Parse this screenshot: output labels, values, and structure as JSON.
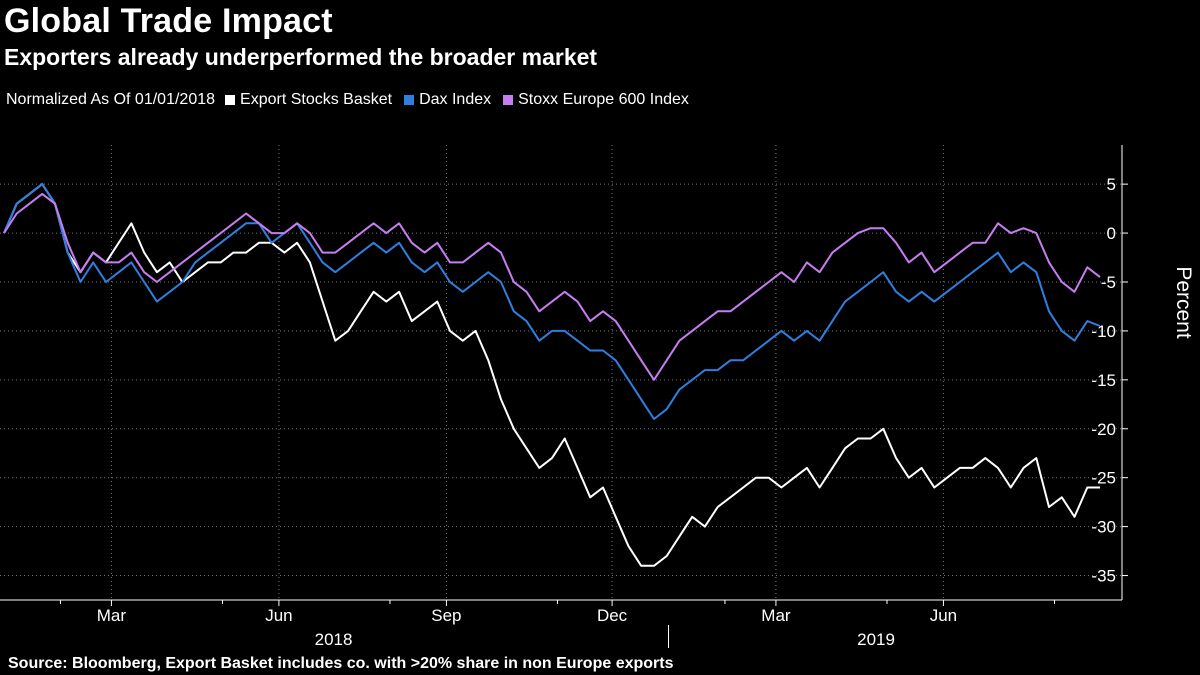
{
  "header": {
    "title": "Global Trade Impact",
    "subtitle": "Exporters already underperformed the broader market"
  },
  "legend": {
    "note": "Normalized As Of 01/01/2018",
    "items": [
      {
        "label": "Export Stocks Basket",
        "color": "#ffffff"
      },
      {
        "label": "Dax Index",
        "color": "#2e7fe0"
      },
      {
        "label": "Stoxx Europe 600 Index",
        "color": "#c77df2"
      }
    ]
  },
  "footer": {
    "source": "Source: Bloomberg, Export Basket includes co. with >20% share in non Europe exports"
  },
  "chart_data": {
    "type": "line",
    "ylabel": "Percent",
    "ylim": [
      -37.5,
      9
    ],
    "yticks": [
      5,
      0,
      -5,
      -10,
      -15,
      -20,
      -25,
      -30,
      -35
    ],
    "ytick_labels": [
      "5",
      "0",
      "-5",
      "-10",
      "-15",
      "-20",
      "-25",
      "-30",
      "-35"
    ],
    "y_axis_position": "right",
    "grid": "dotted",
    "xlim": [
      "2018-01-01",
      "2019-08-26"
    ],
    "x_ticks": [
      {
        "date": "2018-03-01",
        "label": "Mar"
      },
      {
        "date": "2018-06-01",
        "label": "Jun"
      },
      {
        "date": "2018-09-01",
        "label": "Sep"
      },
      {
        "date": "2018-12-01",
        "label": "Dec"
      },
      {
        "date": "2019-03-01",
        "label": "Mar"
      },
      {
        "date": "2019-06-01",
        "label": "Jun"
      }
    ],
    "minor_x_ticks": [
      "2018-02-01",
      "2018-05-01",
      "2018-08-01",
      "2018-11-01",
      "2019-02-01",
      "2019-05-01",
      "2019-08-01"
    ],
    "year_labels": [
      {
        "label": "2018",
        "date": "2018-07-01"
      },
      {
        "label": "2019",
        "date": "2019-04-25"
      }
    ],
    "year_boundary": "2019-01-01",
    "series": [
      {
        "name": "Export Stocks Basket",
        "color": "#ffffff",
        "points": [
          [
            "2018-01-01",
            0
          ],
          [
            "2018-01-08",
            3
          ],
          [
            "2018-01-15",
            4
          ],
          [
            "2018-01-22",
            5
          ],
          [
            "2018-01-29",
            3
          ],
          [
            "2018-02-05",
            -2
          ],
          [
            "2018-02-12",
            -4
          ],
          [
            "2018-02-19",
            -2
          ],
          [
            "2018-02-26",
            -3
          ],
          [
            "2018-03-05",
            -1
          ],
          [
            "2018-03-12",
            1
          ],
          [
            "2018-03-19",
            -2
          ],
          [
            "2018-03-26",
            -4
          ],
          [
            "2018-04-02",
            -3
          ],
          [
            "2018-04-09",
            -5
          ],
          [
            "2018-04-16",
            -4
          ],
          [
            "2018-04-23",
            -3
          ],
          [
            "2018-04-30",
            -3
          ],
          [
            "2018-05-07",
            -2
          ],
          [
            "2018-05-14",
            -2
          ],
          [
            "2018-05-21",
            -1
          ],
          [
            "2018-05-28",
            -1
          ],
          [
            "2018-06-04",
            -2
          ],
          [
            "2018-06-11",
            -1
          ],
          [
            "2018-06-18",
            -3
          ],
          [
            "2018-06-25",
            -7
          ],
          [
            "2018-07-02",
            -11
          ],
          [
            "2018-07-09",
            -10
          ],
          [
            "2018-07-16",
            -8
          ],
          [
            "2018-07-23",
            -6
          ],
          [
            "2018-07-30",
            -7
          ],
          [
            "2018-08-06",
            -6
          ],
          [
            "2018-08-13",
            -9
          ],
          [
            "2018-08-20",
            -8
          ],
          [
            "2018-08-27",
            -7
          ],
          [
            "2018-09-03",
            -10
          ],
          [
            "2018-09-10",
            -11
          ],
          [
            "2018-09-17",
            -10
          ],
          [
            "2018-09-24",
            -13
          ],
          [
            "2018-10-01",
            -17
          ],
          [
            "2018-10-08",
            -20
          ],
          [
            "2018-10-15",
            -22
          ],
          [
            "2018-10-22",
            -24
          ],
          [
            "2018-10-29",
            -23
          ],
          [
            "2018-11-05",
            -21
          ],
          [
            "2018-11-12",
            -24
          ],
          [
            "2018-11-19",
            -27
          ],
          [
            "2018-11-26",
            -26
          ],
          [
            "2018-12-03",
            -29
          ],
          [
            "2018-12-10",
            -32
          ],
          [
            "2018-12-17",
            -34
          ],
          [
            "2018-12-24",
            -34
          ],
          [
            "2018-12-31",
            -33
          ],
          [
            "2019-01-07",
            -31
          ],
          [
            "2019-01-14",
            -29
          ],
          [
            "2019-01-21",
            -30
          ],
          [
            "2019-01-28",
            -28
          ],
          [
            "2019-02-04",
            -27
          ],
          [
            "2019-02-11",
            -26
          ],
          [
            "2019-02-18",
            -25
          ],
          [
            "2019-02-25",
            -25
          ],
          [
            "2019-03-04",
            -26
          ],
          [
            "2019-03-11",
            -25
          ],
          [
            "2019-03-18",
            -24
          ],
          [
            "2019-03-25",
            -26
          ],
          [
            "2019-04-01",
            -24
          ],
          [
            "2019-04-08",
            -22
          ],
          [
            "2019-04-15",
            -21
          ],
          [
            "2019-04-22",
            -21
          ],
          [
            "2019-04-29",
            -20
          ],
          [
            "2019-05-06",
            -23
          ],
          [
            "2019-05-13",
            -25
          ],
          [
            "2019-05-20",
            -24
          ],
          [
            "2019-05-27",
            -26
          ],
          [
            "2019-06-03",
            -25
          ],
          [
            "2019-06-10",
            -24
          ],
          [
            "2019-06-17",
            -24
          ],
          [
            "2019-06-24",
            -23
          ],
          [
            "2019-07-01",
            -24
          ],
          [
            "2019-07-08",
            -26
          ],
          [
            "2019-07-15",
            -24
          ],
          [
            "2019-07-22",
            -23
          ],
          [
            "2019-07-29",
            -28
          ],
          [
            "2019-08-05",
            -27
          ],
          [
            "2019-08-12",
            -29
          ],
          [
            "2019-08-19",
            -26
          ],
          [
            "2019-08-26",
            -26
          ]
        ]
      },
      {
        "name": "Dax Index",
        "color": "#2e7fe0",
        "points": [
          [
            "2018-01-01",
            0
          ],
          [
            "2018-01-08",
            3
          ],
          [
            "2018-01-15",
            4
          ],
          [
            "2018-01-22",
            5
          ],
          [
            "2018-01-29",
            3
          ],
          [
            "2018-02-05",
            -2
          ],
          [
            "2018-02-12",
            -5
          ],
          [
            "2018-02-19",
            -3
          ],
          [
            "2018-02-26",
            -5
          ],
          [
            "2018-03-05",
            -4
          ],
          [
            "2018-03-12",
            -3
          ],
          [
            "2018-03-19",
            -5
          ],
          [
            "2018-03-26",
            -7
          ],
          [
            "2018-04-02",
            -6
          ],
          [
            "2018-04-09",
            -5
          ],
          [
            "2018-04-16",
            -3
          ],
          [
            "2018-04-23",
            -2
          ],
          [
            "2018-04-30",
            -1
          ],
          [
            "2018-05-07",
            0
          ],
          [
            "2018-05-14",
            1
          ],
          [
            "2018-05-21",
            1
          ],
          [
            "2018-05-28",
            -1
          ],
          [
            "2018-06-04",
            0
          ],
          [
            "2018-06-11",
            1
          ],
          [
            "2018-06-18",
            -1
          ],
          [
            "2018-06-25",
            -3
          ],
          [
            "2018-07-02",
            -4
          ],
          [
            "2018-07-09",
            -3
          ],
          [
            "2018-07-16",
            -2
          ],
          [
            "2018-07-23",
            -1
          ],
          [
            "2018-07-30",
            -2
          ],
          [
            "2018-08-06",
            -1
          ],
          [
            "2018-08-13",
            -3
          ],
          [
            "2018-08-20",
            -4
          ],
          [
            "2018-08-27",
            -3
          ],
          [
            "2018-09-03",
            -5
          ],
          [
            "2018-09-10",
            -6
          ],
          [
            "2018-09-17",
            -5
          ],
          [
            "2018-09-24",
            -4
          ],
          [
            "2018-10-01",
            -5
          ],
          [
            "2018-10-08",
            -8
          ],
          [
            "2018-10-15",
            -9
          ],
          [
            "2018-10-22",
            -11
          ],
          [
            "2018-10-29",
            -10
          ],
          [
            "2018-11-05",
            -10
          ],
          [
            "2018-11-12",
            -11
          ],
          [
            "2018-11-19",
            -12
          ],
          [
            "2018-11-26",
            -12
          ],
          [
            "2018-12-03",
            -13
          ],
          [
            "2018-12-10",
            -15
          ],
          [
            "2018-12-17",
            -17
          ],
          [
            "2018-12-24",
            -19
          ],
          [
            "2018-12-31",
            -18
          ],
          [
            "2019-01-07",
            -16
          ],
          [
            "2019-01-14",
            -15
          ],
          [
            "2019-01-21",
            -14
          ],
          [
            "2019-01-28",
            -14
          ],
          [
            "2019-02-04",
            -13
          ],
          [
            "2019-02-11",
            -13
          ],
          [
            "2019-02-18",
            -12
          ],
          [
            "2019-02-25",
            -11
          ],
          [
            "2019-03-04",
            -10
          ],
          [
            "2019-03-11",
            -11
          ],
          [
            "2019-03-18",
            -10
          ],
          [
            "2019-03-25",
            -11
          ],
          [
            "2019-04-01",
            -9
          ],
          [
            "2019-04-08",
            -7
          ],
          [
            "2019-04-15",
            -6
          ],
          [
            "2019-04-22",
            -5
          ],
          [
            "2019-04-29",
            -4
          ],
          [
            "2019-05-06",
            -6
          ],
          [
            "2019-05-13",
            -7
          ],
          [
            "2019-05-20",
            -6
          ],
          [
            "2019-05-27",
            -7
          ],
          [
            "2019-06-03",
            -6
          ],
          [
            "2019-06-10",
            -5
          ],
          [
            "2019-06-17",
            -4
          ],
          [
            "2019-06-24",
            -3
          ],
          [
            "2019-07-01",
            -2
          ],
          [
            "2019-07-08",
            -4
          ],
          [
            "2019-07-15",
            -3
          ],
          [
            "2019-07-22",
            -4
          ],
          [
            "2019-07-29",
            -8
          ],
          [
            "2019-08-05",
            -10
          ],
          [
            "2019-08-12",
            -11
          ],
          [
            "2019-08-19",
            -9
          ],
          [
            "2019-08-26",
            -9.5
          ]
        ]
      },
      {
        "name": "Stoxx Europe 600 Index",
        "color": "#c77df2",
        "points": [
          [
            "2018-01-01",
            0
          ],
          [
            "2018-01-08",
            2
          ],
          [
            "2018-01-15",
            3
          ],
          [
            "2018-01-22",
            4
          ],
          [
            "2018-01-29",
            3
          ],
          [
            "2018-02-05",
            -1
          ],
          [
            "2018-02-12",
            -4
          ],
          [
            "2018-02-19",
            -2
          ],
          [
            "2018-02-26",
            -3
          ],
          [
            "2018-03-05",
            -3
          ],
          [
            "2018-03-12",
            -2
          ],
          [
            "2018-03-19",
            -4
          ],
          [
            "2018-03-26",
            -5
          ],
          [
            "2018-04-02",
            -4
          ],
          [
            "2018-04-09",
            -3
          ],
          [
            "2018-04-16",
            -2
          ],
          [
            "2018-04-23",
            -1
          ],
          [
            "2018-04-30",
            0
          ],
          [
            "2018-05-07",
            1
          ],
          [
            "2018-05-14",
            2
          ],
          [
            "2018-05-21",
            1
          ],
          [
            "2018-05-28",
            0
          ],
          [
            "2018-06-04",
            0
          ],
          [
            "2018-06-11",
            1
          ],
          [
            "2018-06-18",
            0
          ],
          [
            "2018-06-25",
            -2
          ],
          [
            "2018-07-02",
            -2
          ],
          [
            "2018-07-09",
            -1
          ],
          [
            "2018-07-16",
            0
          ],
          [
            "2018-07-23",
            1
          ],
          [
            "2018-07-30",
            0
          ],
          [
            "2018-08-06",
            1
          ],
          [
            "2018-08-13",
            -1
          ],
          [
            "2018-08-20",
            -2
          ],
          [
            "2018-08-27",
            -1
          ],
          [
            "2018-09-03",
            -3
          ],
          [
            "2018-09-10",
            -3
          ],
          [
            "2018-09-17",
            -2
          ],
          [
            "2018-09-24",
            -1
          ],
          [
            "2018-10-01",
            -2
          ],
          [
            "2018-10-08",
            -5
          ],
          [
            "2018-10-15",
            -6
          ],
          [
            "2018-10-22",
            -8
          ],
          [
            "2018-10-29",
            -7
          ],
          [
            "2018-11-05",
            -6
          ],
          [
            "2018-11-12",
            -7
          ],
          [
            "2018-11-19",
            -9
          ],
          [
            "2018-11-26",
            -8
          ],
          [
            "2018-12-03",
            -9
          ],
          [
            "2018-12-10",
            -11
          ],
          [
            "2018-12-17",
            -13
          ],
          [
            "2018-12-24",
            -15
          ],
          [
            "2018-12-31",
            -13
          ],
          [
            "2019-01-07",
            -11
          ],
          [
            "2019-01-14",
            -10
          ],
          [
            "2019-01-21",
            -9
          ],
          [
            "2019-01-28",
            -8
          ],
          [
            "2019-02-04",
            -8
          ],
          [
            "2019-02-11",
            -7
          ],
          [
            "2019-02-18",
            -6
          ],
          [
            "2019-02-25",
            -5
          ],
          [
            "2019-03-04",
            -4
          ],
          [
            "2019-03-11",
            -5
          ],
          [
            "2019-03-18",
            -3
          ],
          [
            "2019-03-25",
            -4
          ],
          [
            "2019-04-01",
            -2
          ],
          [
            "2019-04-08",
            -1
          ],
          [
            "2019-04-15",
            0
          ],
          [
            "2019-04-22",
            0.5
          ],
          [
            "2019-04-29",
            0.5
          ],
          [
            "2019-05-06",
            -1
          ],
          [
            "2019-05-13",
            -3
          ],
          [
            "2019-05-20",
            -2
          ],
          [
            "2019-05-27",
            -4
          ],
          [
            "2019-06-03",
            -3
          ],
          [
            "2019-06-10",
            -2
          ],
          [
            "2019-06-17",
            -1
          ],
          [
            "2019-06-24",
            -1
          ],
          [
            "2019-07-01",
            1
          ],
          [
            "2019-07-08",
            0
          ],
          [
            "2019-07-15",
            0.5
          ],
          [
            "2019-07-22",
            0
          ],
          [
            "2019-07-29",
            -3
          ],
          [
            "2019-08-05",
            -5
          ],
          [
            "2019-08-12",
            -6
          ],
          [
            "2019-08-19",
            -3.5
          ],
          [
            "2019-08-26",
            -4.5
          ]
        ]
      }
    ]
  }
}
